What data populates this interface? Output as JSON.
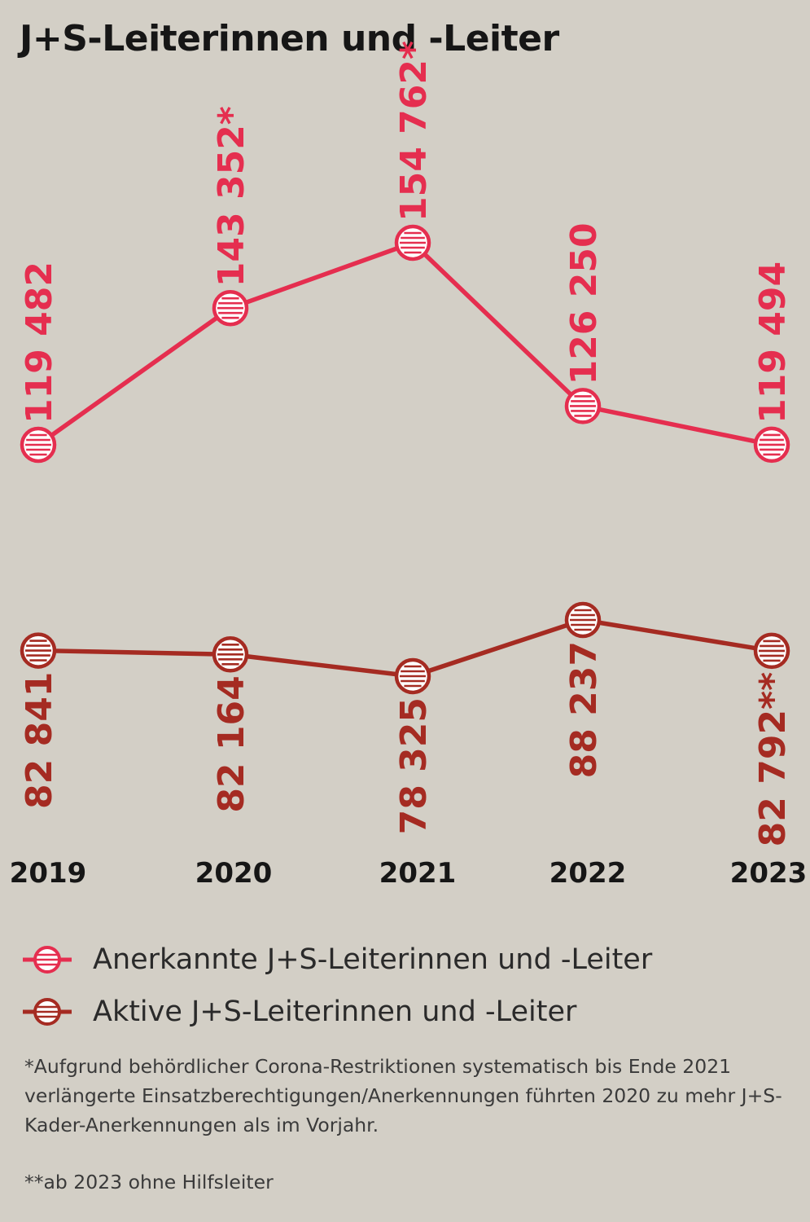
{
  "title": "J+S-Leiterinnen und -Leiter",
  "colors": {
    "background": "#d3cfc6",
    "anerkannte": "#e52e4f",
    "aktive": "#a52b22",
    "text": "#161616"
  },
  "chart_data": {
    "type": "line",
    "title": "J+S-Leiterinnen und -Leiter",
    "categories": [
      "2019",
      "2020",
      "2021",
      "2022",
      "2023"
    ],
    "grid": false,
    "legend_placement": "bottom",
    "series": [
      {
        "name": "Anerkannte J+S-Leiterinnen und -Leiter",
        "values": [
          119482,
          143352,
          154762,
          126250,
          119494
        ],
        "labels": [
          "119 482",
          "143 352*",
          "154 762*",
          "126 250",
          "119 494"
        ],
        "color": "#e52e4f",
        "marker": "striped-circle"
      },
      {
        "name": "Aktive J+S-Leiterinnen und -Leiter",
        "values": [
          82841,
          82164,
          78325,
          88237,
          82792
        ],
        "labels": [
          "82 841",
          "82 164",
          "78 325",
          "88 237",
          "82 792**"
        ],
        "color": "#a52b22",
        "marker": "striped-circle"
      }
    ]
  },
  "legend": [
    {
      "label": "Anerkannte J+S-Leiterinnen und -Leiter",
      "color": "#e52e4f"
    },
    {
      "label": "Aktive J+S-Leiterinnen und -Leiter",
      "color": "#a52b22"
    }
  ],
  "footnotes": {
    "note1": "*Aufgrund behördlicher Corona-Restriktionen systematisch bis Ende 2021 verlängerte Einsatzberechtigungen/Anerkennungen führten 2020 zu mehr J+S-Kader-Anerkennungen als im Vorjahr.",
    "note2": "**ab 2023 ohne Hilfsleiter"
  }
}
